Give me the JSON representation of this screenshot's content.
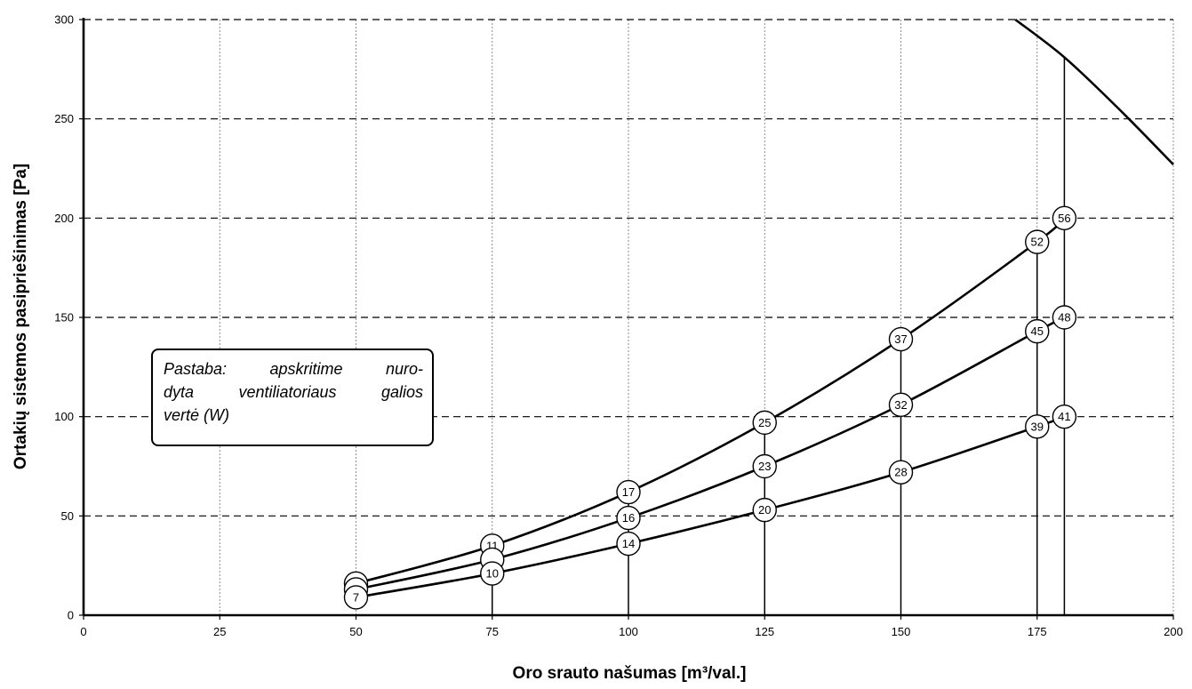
{
  "chart_data": {
    "type": "line",
    "xlabel": "Oro srauto našumas [m³/val.]",
    "ylabel": "Ortakių sistemos pasipriešinimas [Pa]",
    "xlim": [
      0,
      200
    ],
    "ylim": [
      0,
      300
    ],
    "x_ticks": [
      "0",
      "25",
      "50",
      "75",
      "100",
      "125",
      "150",
      "175",
      "200"
    ],
    "y_ticks": [
      "0",
      "50",
      "100",
      "150",
      "200",
      "250",
      "300"
    ],
    "grid": {
      "vertical": "dotted",
      "horizontal": "dashed"
    },
    "series": [
      {
        "points": [
          [
            50,
            16
          ],
          [
            75,
            35
          ],
          [
            100,
            62
          ],
          [
            125,
            97
          ],
          [
            150,
            139
          ],
          [
            175,
            188
          ],
          [
            180,
            200
          ]
        ],
        "labels": [
          "",
          "11",
          "17",
          "25",
          "37",
          "52",
          "56"
        ]
      },
      {
        "points": [
          [
            50,
            13
          ],
          [
            75,
            28
          ],
          [
            100,
            49
          ],
          [
            125,
            75
          ],
          [
            150,
            106
          ],
          [
            175,
            143
          ],
          [
            180,
            150
          ]
        ],
        "labels": [
          "",
          "",
          "16",
          "23",
          "32",
          "45",
          "48"
        ]
      },
      {
        "points": [
          [
            50,
            9
          ],
          [
            75,
            21
          ],
          [
            100,
            36
          ],
          [
            125,
            53
          ],
          [
            150,
            72
          ],
          [
            175,
            95
          ],
          [
            180,
            100
          ]
        ],
        "labels": [
          "7",
          "10",
          "14",
          "20",
          "28",
          "39",
          "41"
        ]
      },
      {
        "points": [
          [
            171,
            300
          ],
          [
            180,
            281
          ],
          [
            190,
            255
          ],
          [
            200,
            227
          ]
        ],
        "labels": []
      }
    ],
    "drop_lines_x": [
      75,
      100,
      125,
      150,
      175,
      180
    ]
  },
  "note": {
    "line1": "Pastaba: apskritime nuro-",
    "line2": "dyta ventiliatoriaus galios",
    "line3": "vertė (W)"
  }
}
